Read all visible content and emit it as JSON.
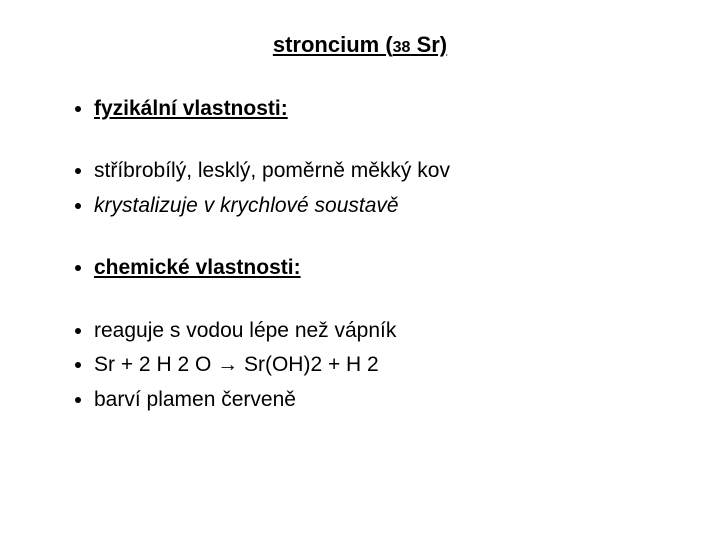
{
  "title_prefix": "stroncium (",
  "title_atomic": "38",
  "title_suffix": " Sr)",
  "section1": {
    "heading": "fyzikální vlastnosti:",
    "items": [
      "stříbrobílý, lesklý, poměrně měkký kov",
      "krystalizuje v krychlové soustavě"
    ]
  },
  "section2": {
    "heading": "chemické vlastnosti:",
    "items": [
      "reaguje s vodou lépe než vápník",
      "Sr + 2 H 2 O → Sr(OH)2 + H 2",
      "barví plamen červeně"
    ]
  },
  "colors": {
    "background": "#ffffff",
    "text": "#000000"
  },
  "typography": {
    "title_fontsize": 22,
    "subscript_fontsize": 16,
    "body_fontsize": 21,
    "font_family": "Arial"
  }
}
